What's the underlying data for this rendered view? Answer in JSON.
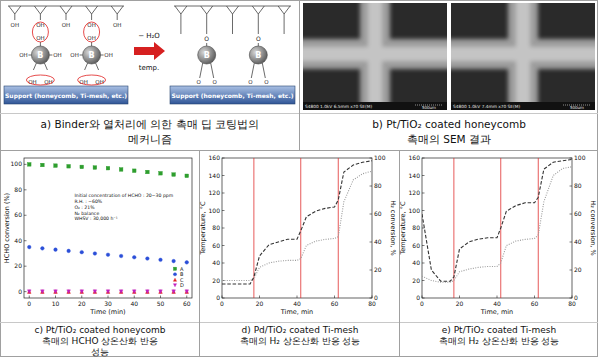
{
  "panels": {
    "a": {
      "caption": [
        "a) Binder와 열처리에 의한 촉매 딥 코팅법의",
        "메커니즘"
      ],
      "support_label": "Support (honeycomb, Ti-mesh, etc.)",
      "binder_label": "B",
      "hydroxyl_label": "OH",
      "bridge_label": "O",
      "arrow_top": "− H₂O",
      "arrow_bottom": "temp."
    },
    "b": {
      "caption": [
        "b) Pt/TiO₂ coated honeycomb",
        "촉매의 SEM 결과"
      ],
      "sem_labels": [
        "S4800 1.0kV 6.5mm x70 SE(M)",
        "S4800 1.0kV 7.4mm x70 SE(M)"
      ],
      "scale_label": "500um"
    },
    "c": {
      "caption": [
        "c) Pt/TiO₂ coated honeycomb",
        "촉매의 HCHO 상온산화 반응",
        "성능"
      ]
    },
    "d": {
      "caption": [
        "d) Pd/TiO₂ coated Ti-mesh",
        "촉매의 H₂ 상온산화 반응 성능"
      ]
    },
    "e": {
      "caption": [
        "e) Pt/TiO₂ coated Ti-mesh",
        "촉매의 H₂ 상온산화 반응 성능"
      ]
    }
  },
  "chart_data": [
    {
      "type": "scatter",
      "xlabel": "Time (min)",
      "ylabel": "HCHO conversion (%)",
      "x": [
        0,
        5,
        10,
        15,
        20,
        25,
        30,
        35,
        40,
        45,
        50,
        55,
        60
      ],
      "series": [
        {
          "name": "A",
          "color": "#2e9e2e",
          "marker": "square",
          "values": [
            100,
            99.5,
            99,
            98.5,
            98,
            97.5,
            97,
            96,
            95,
            94,
            93,
            92,
            91
          ]
        },
        {
          "name": "B",
          "color": "#2b4fd8",
          "marker": "circle",
          "values": [
            35,
            34,
            33,
            32,
            31,
            30,
            29,
            28,
            27,
            26,
            25,
            24,
            23
          ]
        },
        {
          "name": "C",
          "color": "#e02020",
          "marker": "triangle",
          "values": [
            0,
            0,
            0,
            0,
            0,
            0,
            0,
            0,
            0,
            0,
            0,
            0,
            0
          ]
        },
        {
          "name": "D",
          "color": "#c020c0",
          "marker": "triangle-down",
          "values": [
            0,
            0,
            0,
            0,
            0,
            0,
            0,
            0,
            0,
            0,
            0,
            0,
            0
          ]
        }
      ],
      "xlim": [
        -2,
        62
      ],
      "xticks": [
        0,
        10,
        20,
        30,
        40,
        50,
        60
      ],
      "ylim": [
        -5,
        105
      ],
      "yticks": [
        0,
        20,
        40,
        60,
        80,
        100
      ],
      "legend": "lower right",
      "annotations": [
        "Initial concentration of HCHO : 20~30 ppm",
        "R.H. : ~60%",
        "O₂ : 21%",
        "N₂ balance",
        "WHSV : 30,000 h⁻¹"
      ]
    },
    {
      "type": "line",
      "xlabel": "Time, min",
      "ylabel": "Temperature, °C",
      "y2label": "H₂ conversion, %",
      "x": [
        0,
        5,
        10,
        15,
        17,
        20,
        25,
        30,
        35,
        40,
        42,
        45,
        50,
        55,
        60,
        62,
        65,
        70,
        75,
        80
      ],
      "series": [
        {
          "color": "#9a9a9a",
          "line_style": "dotted",
          "values": [
            20,
            20,
            20,
            20,
            22,
            35,
            40,
            42,
            43,
            43,
            45,
            60,
            65,
            67,
            68,
            70,
            110,
            135,
            142,
            145
          ]
        },
        {
          "color": "#333333",
          "line_style": "dashed",
          "axis": "y2",
          "values": [
            10,
            10,
            10,
            10,
            15,
            30,
            38,
            40,
            42,
            42,
            48,
            58,
            62,
            64,
            65,
            70,
            90,
            95,
            97,
            98
          ]
        }
      ],
      "vertical_lines": [
        17,
        42,
        62
      ],
      "xlim": [
        0,
        80
      ],
      "xticks": [
        0,
        20,
        40,
        60,
        80
      ],
      "ylim": [
        0,
        160
      ],
      "yticks": [
        0,
        20,
        40,
        60,
        80,
        100,
        120,
        140,
        160
      ],
      "y2lim": [
        0,
        100
      ],
      "y2ticks": [
        0,
        20,
        40,
        60,
        80,
        100
      ]
    },
    {
      "type": "line",
      "xlabel": "Time, min",
      "ylabel": "Temperature, °C",
      "y2label": "H₂ conversion, %",
      "x": [
        0,
        5,
        10,
        15,
        17,
        20,
        25,
        30,
        35,
        40,
        42,
        45,
        50,
        55,
        60,
        62,
        65,
        70,
        75,
        80
      ],
      "series": [
        {
          "color": "#9a9a9a",
          "line_style": "dotted",
          "values": [
            25,
            20,
            18,
            18,
            20,
            30,
            33,
            35,
            36,
            36,
            40,
            60,
            65,
            67,
            68,
            72,
            110,
            140,
            148,
            150
          ]
        },
        {
          "color": "#333333",
          "line_style": "dashed",
          "axis": "y2",
          "values": [
            60,
            20,
            12,
            12,
            15,
            35,
            40,
            42,
            43,
            43,
            50,
            62,
            66,
            68,
            68,
            72,
            92,
            97,
            98,
            99
          ]
        }
      ],
      "vertical_lines": [
        17,
        42,
        62
      ],
      "xlim": [
        0,
        80
      ],
      "xticks": [
        0,
        20,
        40,
        60,
        80
      ],
      "ylim": [
        0,
        160
      ],
      "yticks": [
        0,
        20,
        40,
        60,
        80,
        100,
        120,
        140,
        160
      ],
      "y2lim": [
        0,
        100
      ],
      "y2ticks": [
        0,
        20,
        40,
        60,
        80,
        100
      ]
    }
  ]
}
